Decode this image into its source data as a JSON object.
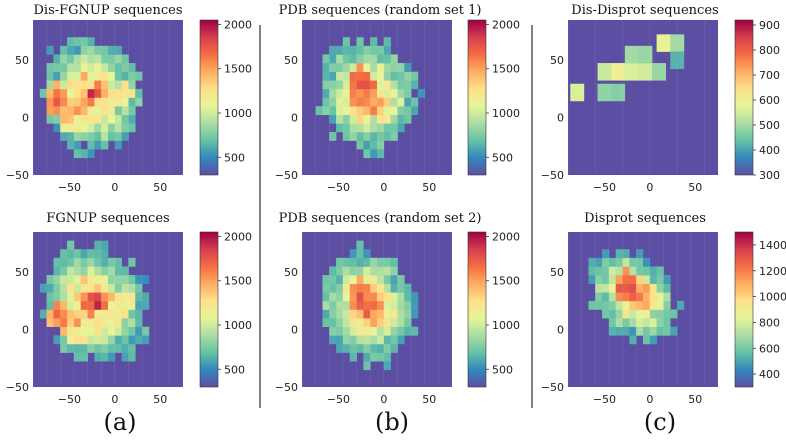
{
  "figure": {
    "panel_labels": [
      "(a)",
      "(b)",
      "(c)"
    ],
    "colormap": [
      "#5e4fa2",
      "#3288bd",
      "#66c2a5",
      "#abdda4",
      "#e6f598",
      "#fee08b",
      "#fdae61",
      "#f46d43",
      "#d53e4f",
      "#9e0142"
    ],
    "background_color": "#5b4ea3"
  },
  "chart_data": [
    {
      "type": "heatmap",
      "title": "Dis-FGNUP sequences",
      "xlim": [
        -90,
        75
      ],
      "ylim": [
        -50,
        85
      ],
      "xticks": [
        -50,
        0,
        50
      ],
      "yticks": [
        -50,
        0,
        50
      ],
      "xtick_labels": [
        "−50",
        "0",
        "50"
      ],
      "ytick_labels": [
        "−50",
        "0",
        "50"
      ],
      "colorbar": {
        "min": 300,
        "max": 2050,
        "ticks": [
          500,
          1000,
          1500,
          2000
        ],
        "tick_labels": [
          "500",
          "1000",
          "1500",
          "2000"
        ]
      },
      "shape": "blob",
      "center": [
        -25,
        20
      ],
      "radii": [
        55,
        48
      ],
      "angle": -30,
      "hotspots": [
        [
          -65,
          15,
          1700
        ],
        [
          -45,
          5,
          1600
        ],
        [
          -15,
          15,
          1550
        ],
        [
          45,
          18,
          1500
        ]
      ],
      "band": true,
      "seed": 3
    },
    {
      "type": "heatmap",
      "title": "PDB sequences (random set 1)",
      "xlim": [
        -90,
        75
      ],
      "ylim": [
        -50,
        85
      ],
      "xticks": [
        -50,
        0,
        50
      ],
      "yticks": [
        -50,
        0,
        50
      ],
      "xtick_labels": [
        "−50",
        "0",
        "50"
      ],
      "ytick_labels": [
        "−50",
        "0",
        "50"
      ],
      "colorbar": {
        "min": 300,
        "max": 2050,
        "ticks": [
          500,
          1000,
          1500,
          2000
        ],
        "tick_labels": [
          "500",
          "1000",
          "1500",
          "2000"
        ]
      },
      "shape": "blob",
      "center": [
        -18,
        20
      ],
      "radii": [
        55,
        48
      ],
      "angle": -20,
      "hotspots": [
        [
          -25,
          30,
          1800
        ],
        [
          -10,
          15,
          1500
        ]
      ],
      "band": false,
      "seed": 11
    },
    {
      "type": "heatmap",
      "title": "Dis-Disprot sequences",
      "xlim": [
        -90,
        75
      ],
      "ylim": [
        -50,
        85
      ],
      "xticks": [
        -50,
        0,
        50
      ],
      "yticks": [
        -50,
        0,
        50
      ],
      "xtick_labels": [
        "−50",
        "0",
        "50"
      ],
      "ytick_labels": [
        "−50",
        "0",
        "50"
      ],
      "colorbar": {
        "min": 300,
        "max": 920,
        "ticks": [
          300,
          400,
          500,
          600,
          700,
          800,
          900
        ],
        "tick_labels": [
          "300",
          "400",
          "500",
          "600",
          "700",
          "800",
          "900"
        ]
      },
      "shape": "cells",
      "cell_size": 15,
      "cells": [
        [
          -80,
          22,
          560
        ],
        [
          -50,
          22,
          480
        ],
        [
          -35,
          22,
          470
        ],
        [
          -50,
          40,
          540
        ],
        [
          -35,
          40,
          600
        ],
        [
          -20,
          40,
          560
        ],
        [
          -5,
          40,
          550
        ],
        [
          10,
          40,
          490
        ],
        [
          -20,
          55,
          500
        ],
        [
          -5,
          55,
          490
        ],
        [
          15,
          65,
          590
        ],
        [
          30,
          65,
          500
        ],
        [
          30,
          50,
          420
        ]
      ],
      "seed": 5
    },
    {
      "type": "heatmap",
      "title": "FGNUP sequences",
      "xlim": [
        -90,
        75
      ],
      "ylim": [
        -50,
        85
      ],
      "xticks": [
        -50,
        0,
        50
      ],
      "yticks": [
        -50,
        0,
        50
      ],
      "xtick_labels": [
        "−50",
        "0",
        "50"
      ],
      "ytick_labels": [
        "−50",
        "0",
        "50"
      ],
      "colorbar": {
        "min": 300,
        "max": 2050,
        "ticks": [
          500,
          1000,
          1500,
          2000
        ],
        "tick_labels": [
          "500",
          "1000",
          "1500",
          "2000"
        ]
      },
      "shape": "blob",
      "center": [
        -22,
        22
      ],
      "radii": [
        60,
        48
      ],
      "angle": -25,
      "hotspots": [
        [
          -60,
          12,
          1700
        ],
        [
          -40,
          5,
          1500
        ],
        [
          -15,
          15,
          1550
        ]
      ],
      "band": true,
      "seed": 7
    },
    {
      "type": "heatmap",
      "title": "PDB sequences (random set 2)",
      "xlim": [
        -90,
        75
      ],
      "ylim": [
        -50,
        85
      ],
      "xticks": [
        -50,
        0,
        50
      ],
      "yticks": [
        -50,
        0,
        50
      ],
      "xtick_labels": [
        "−50",
        "0",
        "50"
      ],
      "ytick_labels": [
        "−50",
        "0",
        "50"
      ],
      "colorbar": {
        "min": 300,
        "max": 2050,
        "ticks": [
          500,
          1000,
          1500,
          2000
        ],
        "tick_labels": [
          "500",
          "1000",
          "1500",
          "2000"
        ]
      },
      "shape": "blob",
      "center": [
        -18,
        20
      ],
      "radii": [
        55,
        48
      ],
      "angle": -20,
      "hotspots": [
        [
          -25,
          30,
          1800
        ],
        [
          -10,
          15,
          1500
        ]
      ],
      "band": false,
      "seed": 23
    },
    {
      "type": "heatmap",
      "title": "Disprot sequences",
      "xlim": [
        -90,
        75
      ],
      "ylim": [
        -50,
        85
      ],
      "xticks": [
        -50,
        0,
        50
      ],
      "yticks": [
        -50,
        0,
        50
      ],
      "xtick_labels": [
        "−50",
        "0",
        "50"
      ],
      "ytick_labels": [
        "−50",
        "0",
        "50"
      ],
      "colorbar": {
        "min": 300,
        "max": 1500,
        "ticks": [
          400,
          600,
          800,
          1000,
          1200,
          1400
        ],
        "tick_labels": [
          "400",
          "600",
          "800",
          "1000",
          "1200",
          "1400"
        ]
      },
      "shape": "blob",
      "center": [
        -18,
        30
      ],
      "radii": [
        52,
        34
      ],
      "angle": -25,
      "hotspots": [
        [
          -25,
          38,
          1400
        ],
        [
          -10,
          30,
          1250
        ]
      ],
      "band": false,
      "seed": 31
    }
  ]
}
